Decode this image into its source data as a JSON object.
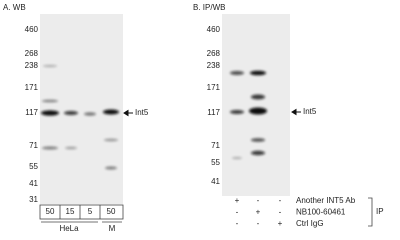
{
  "panels": [
    {
      "label": "A. WB",
      "markers": [
        "460",
        "268",
        "238",
        "171",
        "117",
        "71",
        "55",
        "41",
        "31"
      ],
      "arrow_label": "Int5",
      "lanes": [
        "50",
        "15",
        "5",
        "50"
      ],
      "groups": [
        "HeLa",
        "M"
      ]
    },
    {
      "label": "B. IP/WB",
      "markers": [
        "460",
        "268",
        "238",
        "171",
        "117",
        "71",
        "55",
        "41"
      ],
      "arrow_label": "Int5",
      "rows": [
        {
          "label": "Another INT5 Ab",
          "signs": [
            "+",
            "-",
            "-"
          ]
        },
        {
          "label": "NB100-60461",
          "signs": [
            "-",
            "+",
            "-"
          ]
        },
        {
          "label": "Ctrl IgG",
          "signs": [
            "-",
            "-",
            "+"
          ]
        }
      ],
      "bracket_label": "IP"
    }
  ]
}
